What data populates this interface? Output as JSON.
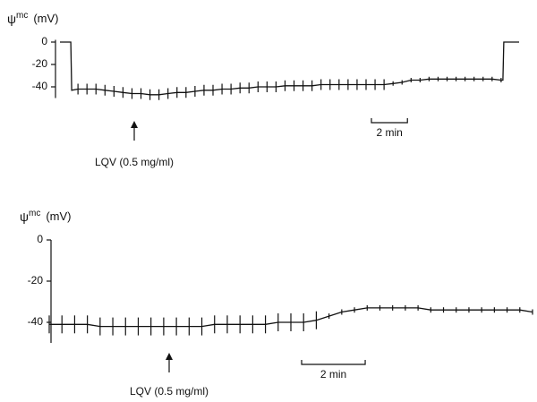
{
  "chart_data": [
    {
      "type": "line",
      "y_label_symbol": "ψ",
      "y_label_superscript": "mc",
      "y_label_unit": "(mV)",
      "annotation": "LQV (0.5 mg/ml)",
      "scalebar": {
        "value": 2,
        "label": "2 min"
      },
      "color": "#111111",
      "xlim": [
        0,
        25.5
      ],
      "ylim": [
        -50,
        2
      ],
      "yticks": [
        0,
        -20,
        -40
      ],
      "x": [
        0,
        0.6,
        0.65,
        1,
        1.5,
        2,
        2.5,
        3,
        3.5,
        4,
        4.5,
        5,
        5.5,
        6,
        6.5,
        7,
        7.5,
        8,
        8.5,
        9,
        9.5,
        10,
        10.5,
        11,
        11.5,
        12,
        12.5,
        13,
        13.5,
        14,
        14.5,
        15,
        15.5,
        16,
        16.5,
        17,
        17.5,
        18,
        18.5,
        19,
        19.5,
        20,
        20.5,
        21,
        21.5,
        22,
        22.5,
        23,
        23.5,
        24,
        24.5,
        24.6,
        24.65,
        25.5
      ],
      "values": [
        0,
        0,
        -43,
        -42,
        -42,
        -42,
        -43,
        -44,
        -45,
        -46,
        -46,
        -47,
        -47,
        -46,
        -45,
        -45,
        -44,
        -43,
        -43,
        -42,
        -42,
        -41,
        -41,
        -40,
        -40,
        -40,
        -39,
        -39,
        -39,
        -39,
        -38,
        -38,
        -38,
        -38,
        -38,
        -38,
        -38,
        -38,
        -37,
        -36,
        -34,
        -34,
        -33,
        -33,
        -33,
        -33,
        -33,
        -33,
        -33,
        -33,
        -34,
        -34,
        0,
        0
      ]
    },
    {
      "type": "line",
      "y_label_symbol": "ψ",
      "y_label_superscript": "mc",
      "y_label_unit": "(mV)",
      "annotation": "LQV (0.5 mg/ml)",
      "scalebar": {
        "value": 2,
        "label": "2 min"
      },
      "color": "#111111",
      "xlim": [
        0,
        15.2
      ],
      "ylim": [
        -50,
        0
      ],
      "yticks": [
        0,
        -20,
        -40
      ],
      "x": [
        0,
        0.4,
        0.8,
        1.2,
        1.6,
        2,
        2.4,
        2.8,
        3.2,
        3.6,
        4,
        4.4,
        4.8,
        5.2,
        5.6,
        6,
        6.4,
        6.8,
        7.2,
        7.6,
        8,
        8.4,
        8.8,
        9.2,
        9.6,
        10,
        10.4,
        10.8,
        11.2,
        11.6,
        12,
        12.4,
        12.8,
        13.2,
        13.6,
        14,
        14.4,
        14.8,
        15.2
      ],
      "values": [
        -41,
        -41,
        -41,
        -41,
        -42,
        -42,
        -42,
        -42,
        -42,
        -42,
        -42,
        -42,
        -42,
        -41,
        -41,
        -41,
        -41,
        -41,
        -40,
        -40,
        -40,
        -39,
        -37,
        -35,
        -34,
        -33,
        -33,
        -33,
        -33,
        -33,
        -34,
        -34,
        -34,
        -34,
        -34,
        -34,
        -34,
        -34,
        -35
      ]
    }
  ]
}
